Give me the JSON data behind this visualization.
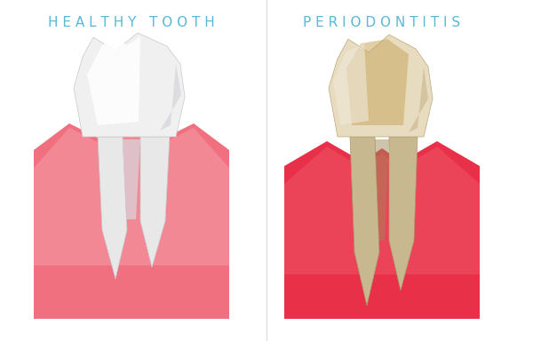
{
  "title_left": "H E A L T H Y   T O O T H",
  "title_right": "P E R I O D O N T I T I S",
  "title_color": "#5bb8d4",
  "title_fontsize": 11,
  "bg_color": "#ffffff",
  "gum_healthy_color": "#f07080",
  "gum_healthy_light": "#f5a0a8",
  "gum_diseased_color": "#e83048",
  "gum_diseased_light": "#f06070",
  "tooth_healthy_main": "#f0f0f0",
  "tooth_healthy_light": "#ffffff",
  "tooth_healthy_shadow": "#d0d0d8",
  "tooth_diseased_main": "#d4c4a0",
  "tooth_diseased_dark": "#b8a070",
  "tooth_diseased_stain": "#c8a860",
  "tooth_diseased_light": "#e8dcc0",
  "tooth_root_healthy": "#e8e8e8",
  "tooth_root_diseased": "#c8b890"
}
